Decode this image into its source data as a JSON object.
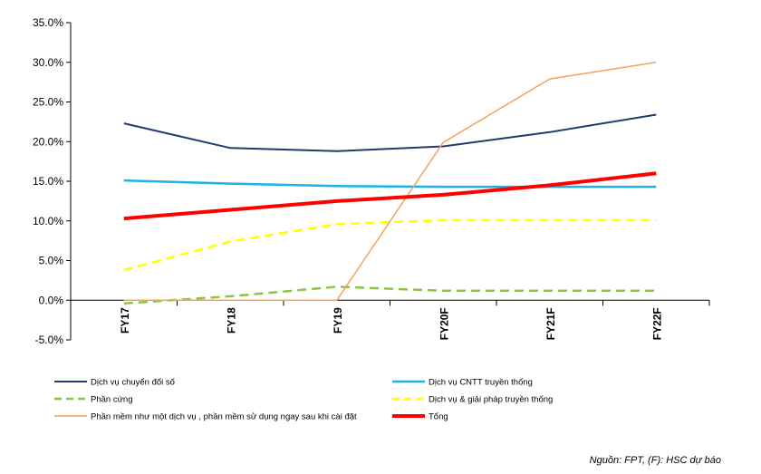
{
  "chart_data": {
    "type": "line",
    "categories": [
      "FY17",
      "FY18",
      "FY19",
      "FY20F",
      "FY21F",
      "FY22F"
    ],
    "ylim": [
      -5,
      35
    ],
    "yticks": [
      -5,
      0,
      5,
      10,
      15,
      20,
      25,
      30,
      35
    ],
    "ytick_labels": [
      "-5.0%",
      "0.0%",
      "5.0%",
      "10.0%",
      "15.0%",
      "20.0%",
      "25.0%",
      "30.0%",
      "35.0%"
    ],
    "grid": false,
    "legend_position": "bottom",
    "series": [
      {
        "name": "Dịch vụ chuyển đổi số",
        "color": "#1f3a6e",
        "style": "solid",
        "width": 2,
        "values": [
          22.3,
          19.2,
          18.8,
          19.4,
          21.2,
          23.4
        ]
      },
      {
        "name": "Dịch vụ CNTT truyền thống",
        "color": "#1fb2e8",
        "style": "solid",
        "width": 2.5,
        "values": [
          15.1,
          14.7,
          14.4,
          14.3,
          14.3,
          14.3
        ]
      },
      {
        "name": "Phần cứng",
        "color": "#8cc63f",
        "style": "dashed",
        "width": 2.5,
        "values": [
          -0.4,
          0.5,
          1.7,
          1.2,
          1.2,
          1.2
        ]
      },
      {
        "name": "Dịch vụ & giải pháp truyền thống",
        "color": "#ffff00",
        "style": "dashed",
        "width": 2.5,
        "values": [
          3.8,
          7.4,
          9.6,
          10.1,
          10.1,
          10.1
        ]
      },
      {
        "name": "Phần mềm như một dịch vụ , phần mềm sử dụng ngay sau khi cài đặt",
        "color": "#f4a259",
        "style": "solid",
        "width": 1.5,
        "values": [
          0,
          0,
          0,
          19.9,
          27.9,
          30.0
        ]
      },
      {
        "name": "Tổng",
        "color": "#ff0000",
        "style": "solid",
        "width": 4,
        "values": [
          10.3,
          11.4,
          12.5,
          13.3,
          14.5,
          16.0
        ]
      }
    ]
  },
  "source": "Nguồn: FPT, (F): HSC dự báo"
}
